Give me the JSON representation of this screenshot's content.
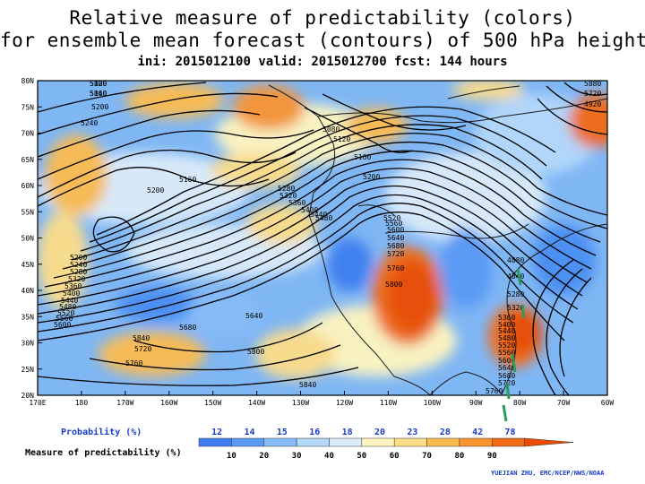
{
  "title": {
    "line1": "Relative measure of predictability (colors)",
    "line2": "for ensemble mean forecast (contours) of 500 hPa height",
    "line3": "ini: 2015012100 valid: 2015012700 fcst: 144 hours"
  },
  "axes": {
    "lat_labels": [
      "80N",
      "75N",
      "70N",
      "65N",
      "60N",
      "55N",
      "50N",
      "45N",
      "40N",
      "35N",
      "30N",
      "25N",
      "20N"
    ],
    "lon_labels": [
      "170E",
      "180",
      "170W",
      "160W",
      "150W",
      "140W",
      "130W",
      "120W",
      "110W",
      "100W",
      "90W",
      "80W",
      "70W",
      "60W"
    ]
  },
  "contour_labels": [
    {
      "text": "5120"
    },
    {
      "text": "5160"
    },
    {
      "text": "5200"
    },
    {
      "text": "5240"
    },
    {
      "text": "5080"
    },
    {
      "text": "5120"
    },
    {
      "text": "5160"
    },
    {
      "text": "5200"
    },
    {
      "text": "5160"
    },
    {
      "text": "5200"
    },
    {
      "text": "5280"
    },
    {
      "text": "5320"
    },
    {
      "text": "5360"
    },
    {
      "text": "5400"
    },
    {
      "text": "5440"
    },
    {
      "text": "5480"
    },
    {
      "text": "5520"
    },
    {
      "text": "5560"
    },
    {
      "text": "5600"
    },
    {
      "text": "5640"
    },
    {
      "text": "5680"
    },
    {
      "text": "5720"
    },
    {
      "text": "5760"
    },
    {
      "text": "5800"
    },
    {
      "text": "5200"
    },
    {
      "text": "5240"
    },
    {
      "text": "5280"
    },
    {
      "text": "5320"
    },
    {
      "text": "5360"
    },
    {
      "text": "5400"
    },
    {
      "text": "5440"
    },
    {
      "text": "5480"
    },
    {
      "text": "5520"
    },
    {
      "text": "5560"
    },
    {
      "text": "5600"
    },
    {
      "text": "5640"
    },
    {
      "text": "5680"
    },
    {
      "text": "5840"
    },
    {
      "text": "5720"
    },
    {
      "text": "5760"
    },
    {
      "text": "5800"
    },
    {
      "text": "5840"
    },
    {
      "text": "5880"
    },
    {
      "text": "5720"
    },
    {
      "text": "4920"
    },
    {
      "text": "4880"
    },
    {
      "text": "4840"
    },
    {
      "text": "5280"
    },
    {
      "text": "5320"
    },
    {
      "text": "5360"
    },
    {
      "text": "5400"
    },
    {
      "text": "5440"
    },
    {
      "text": "5480"
    },
    {
      "text": "5520"
    },
    {
      "text": "5560"
    },
    {
      "text": "5600"
    },
    {
      "text": "5640"
    },
    {
      "text": "5680"
    },
    {
      "text": "5720"
    },
    {
      "text": "5760"
    },
    {
      "text": "5800"
    },
    {
      "text": "5840"
    }
  ],
  "legend": {
    "probability_label": "Probability (%)",
    "probability_values": [
      "12",
      "14",
      "15",
      "16",
      "18",
      "20",
      "23",
      "28",
      "42",
      "78"
    ],
    "predictability_label": "Measure of predictability (%)",
    "predictability_values": [
      "10",
      "20",
      "30",
      "40",
      "50",
      "60",
      "70",
      "80",
      "90"
    ],
    "colors": [
      "#3c7ef0",
      "#5a9af6",
      "#86bcf8",
      "#b4d8fa",
      "#dcecfa",
      "#fff5c0",
      "#fedd88",
      "#fdbc50",
      "#f99430",
      "#f36a14",
      "#ec4c00"
    ],
    "credit": "YUEJIAN ZHU, EMC/NCEP/NWS/NOAA"
  },
  "colors": {
    "ocean_low": "#5fa2f2",
    "high_predictability": "#f26a10",
    "contour": "#000000",
    "coast": "#1a1a1a",
    "annotation": "#2c9a5c"
  }
}
